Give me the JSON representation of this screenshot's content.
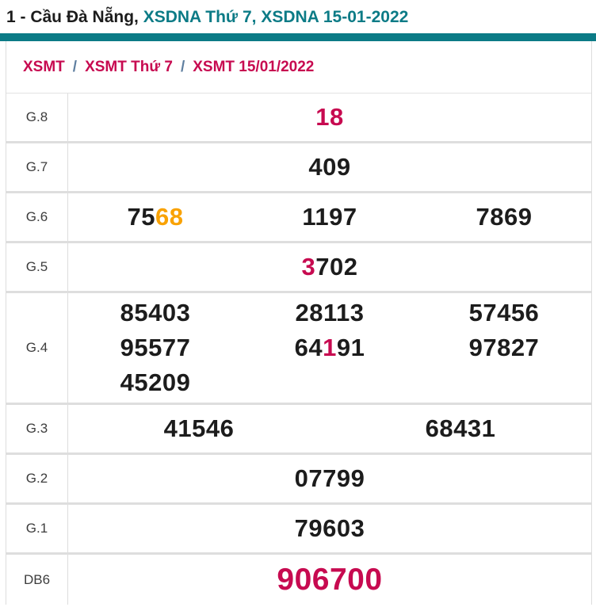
{
  "title": {
    "plain": "1 - Cầu Đà Nẵng, ",
    "accent": "XSDNA Thứ 7, XSDNA 15-01-2022"
  },
  "breadcrumb": {
    "items": [
      "XSMT",
      "XSMT Thứ 7",
      "XSMT 15/01/2022"
    ],
    "separator": "/"
  },
  "colors": {
    "teal": "#0c7b86",
    "crimson": "#c70a50",
    "orange": "#f9a202",
    "dark": "#1c1c1c"
  },
  "results_table": {
    "rows": [
      {
        "label": "G.8",
        "cols": 1,
        "big": false,
        "numbers": [
          [
            {
              "t": "18",
              "c": "crimson"
            }
          ]
        ]
      },
      {
        "label": "G.7",
        "cols": 1,
        "big": false,
        "numbers": [
          [
            {
              "t": "409"
            }
          ]
        ]
      },
      {
        "label": "G.6",
        "cols": 3,
        "big": false,
        "numbers": [
          [
            {
              "t": "75"
            },
            {
              "t": "68",
              "c": "orange"
            }
          ],
          [
            {
              "t": "1197"
            }
          ],
          [
            {
              "t": "7869"
            }
          ]
        ]
      },
      {
        "label": "G.5",
        "cols": 1,
        "big": false,
        "numbers": [
          [
            {
              "t": "3",
              "c": "crimson"
            },
            {
              "t": "702"
            }
          ]
        ]
      },
      {
        "label": "G.4",
        "cols": 3,
        "big": false,
        "numbers": [
          [
            {
              "t": "85403"
            }
          ],
          [
            {
              "t": "28113"
            }
          ],
          [
            {
              "t": "57456"
            }
          ],
          [
            {
              "t": "95577"
            }
          ],
          [
            {
              "t": "64"
            },
            {
              "t": "1",
              "c": "crimson"
            },
            {
              "t": "91"
            }
          ],
          [
            {
              "t": "97827"
            }
          ],
          [
            {
              "t": "45209"
            }
          ]
        ]
      },
      {
        "label": "G.3",
        "cols": 2,
        "big": false,
        "numbers": [
          [
            {
              "t": "41546"
            }
          ],
          [
            {
              "t": "68431"
            }
          ]
        ]
      },
      {
        "label": "G.2",
        "cols": 1,
        "big": false,
        "numbers": [
          [
            {
              "t": "07799"
            }
          ]
        ]
      },
      {
        "label": "G.1",
        "cols": 1,
        "big": false,
        "numbers": [
          [
            {
              "t": "79603"
            }
          ]
        ]
      },
      {
        "label": "DB6",
        "cols": 1,
        "big": true,
        "numbers": [
          [
            {
              "t": "906700",
              "c": "crimson"
            }
          ]
        ]
      }
    ]
  }
}
